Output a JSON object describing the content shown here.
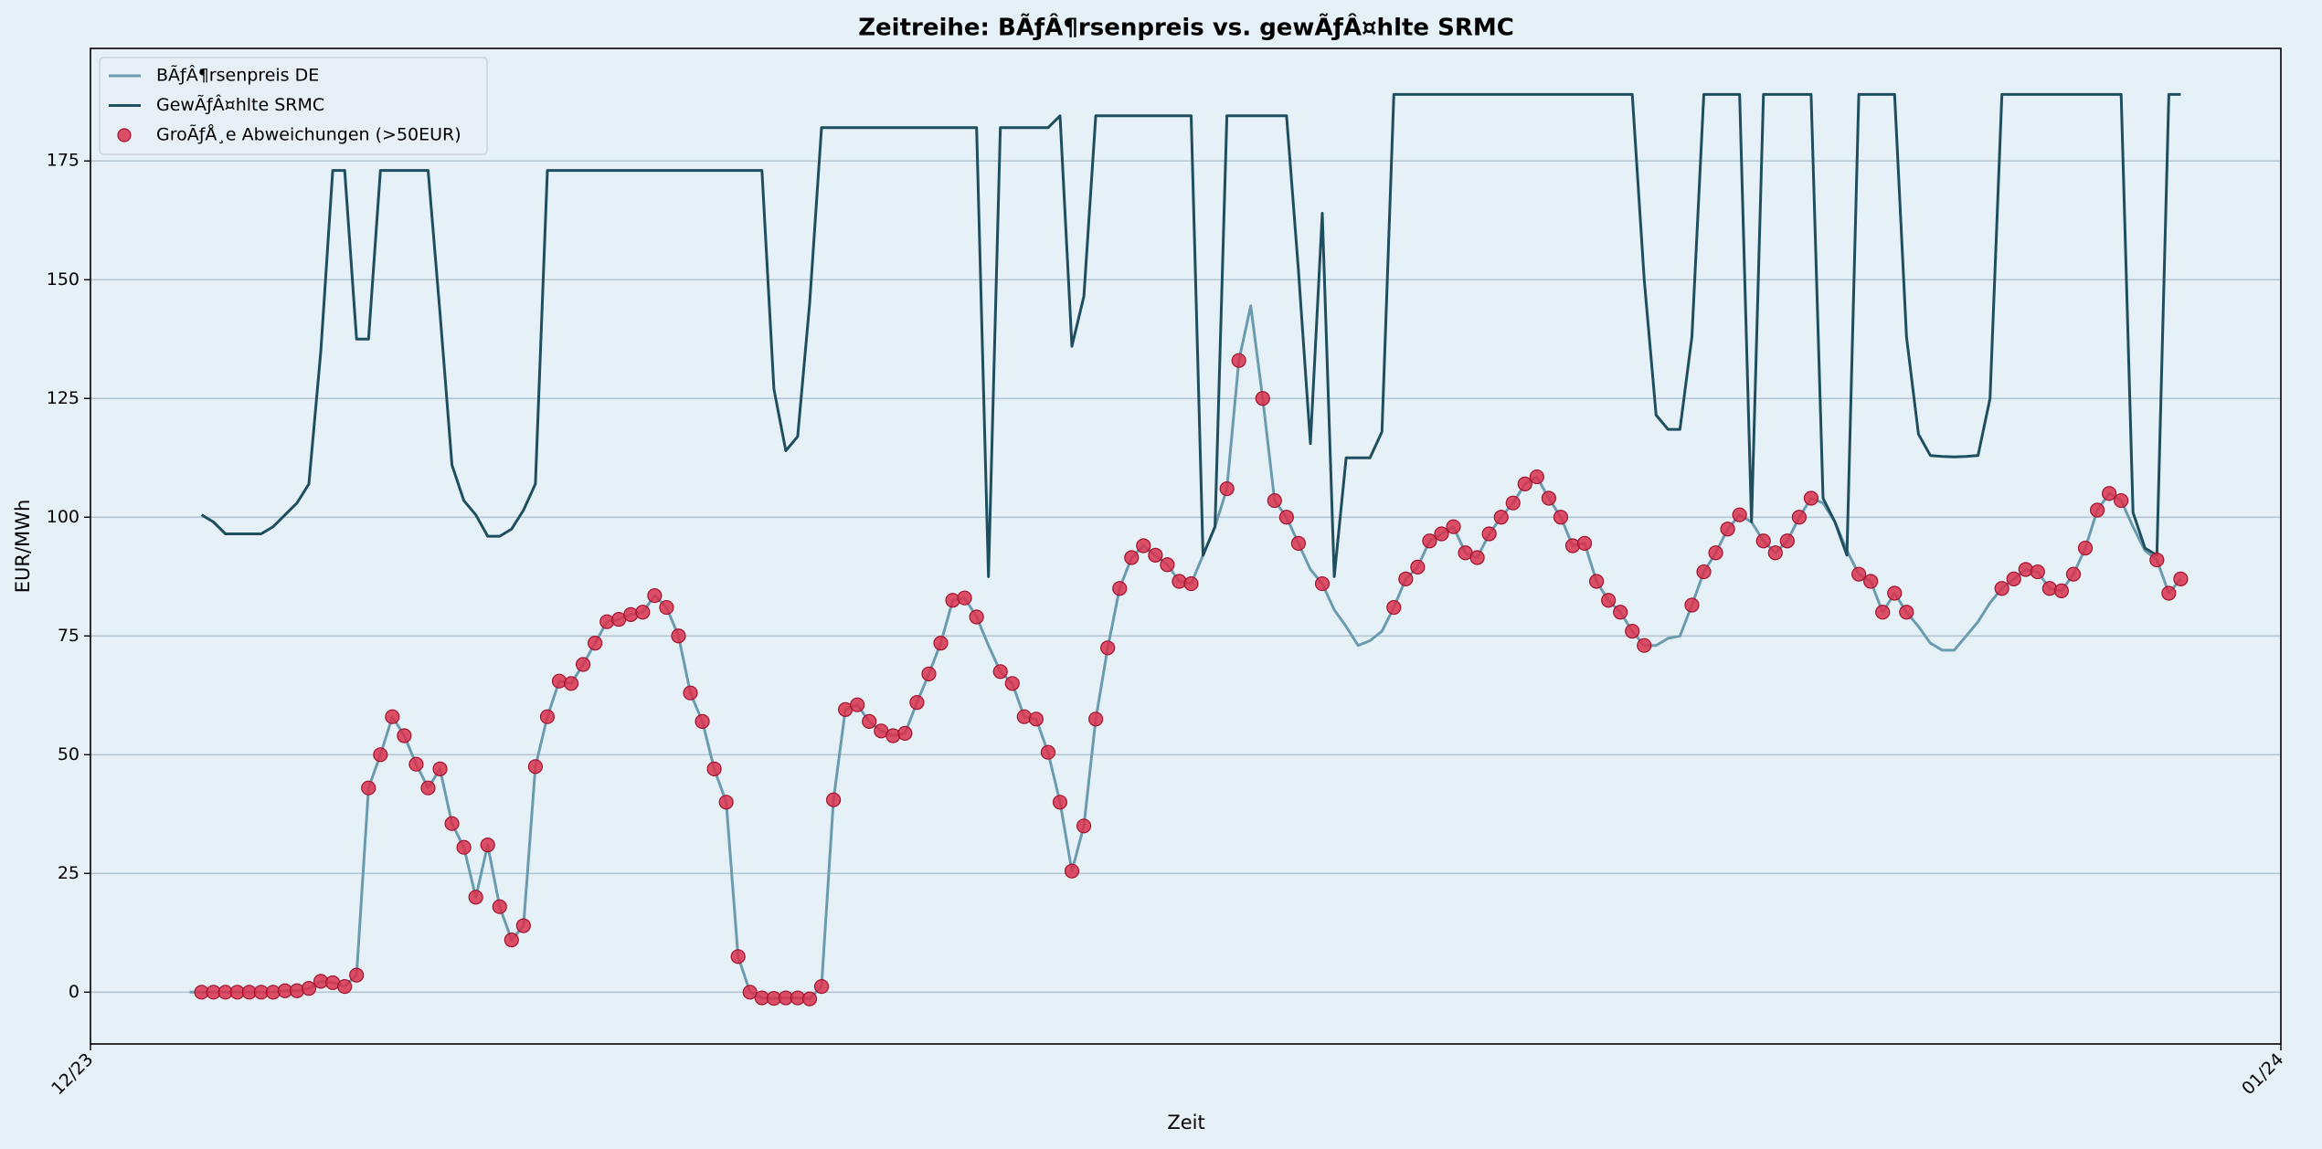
{
  "chart_data": {
    "type": "line",
    "title": "Zeitreihe: BÃƒÂ¶rsenpreis vs. gewÃƒÂ¤hlte SRMC",
    "x_label": "Zeit",
    "y_label": "EUR/MWh",
    "xlim": [
      -8.32,
      175.4
    ],
    "xticks": [
      {
        "value": -8.32,
        "label": "12/23"
      },
      {
        "value": 175.4,
        "label": "01/24"
      }
    ],
    "ylim": [
      -10.9,
      198.7
    ],
    "yticks": [
      0,
      25,
      50,
      75,
      100,
      125,
      150,
      175
    ],
    "grid": "y",
    "legend": "upper left",
    "x": [
      0,
      1,
      2,
      3,
      4,
      5,
      6,
      7,
      8,
      9,
      10,
      11,
      12,
      13,
      14,
      15,
      16,
      17,
      18,
      19,
      20,
      21,
      22,
      23,
      24,
      25,
      26,
      27,
      28,
      29,
      30,
      31,
      32,
      33,
      34,
      35,
      36,
      37,
      38,
      39,
      40,
      41,
      42,
      43,
      44,
      45,
      46,
      47,
      48,
      49,
      50,
      51,
      52,
      53,
      54,
      55,
      56,
      57,
      58,
      59,
      60,
      61,
      62,
      63,
      64,
      65,
      66,
      67,
      68,
      69,
      70,
      71,
      72,
      73,
      74,
      75,
      76,
      77,
      78,
      79,
      80,
      81,
      82,
      83,
      84,
      85,
      86,
      87,
      88,
      89,
      90,
      91,
      92,
      93,
      94,
      95,
      96,
      97,
      98,
      99,
      100,
      101,
      102,
      103,
      104,
      105,
      106,
      107,
      108,
      109,
      110,
      111,
      112,
      113,
      114,
      115,
      116,
      117,
      118,
      119,
      120,
      121,
      122,
      123,
      124,
      125,
      126,
      127,
      128,
      129,
      130,
      131,
      132,
      133,
      134,
      135,
      136,
      137,
      138,
      139,
      140,
      141,
      142,
      143,
      144,
      145,
      146,
      147,
      148,
      149,
      150,
      151,
      152,
      153,
      154,
      155,
      156,
      157,
      158,
      159,
      160,
      161,
      162,
      163,
      164,
      165,
      166,
      167
    ],
    "series": [
      {
        "name": "BÃƒÂ¶rsenpreis DE",
        "kind": "line",
        "color": "#6b9bae",
        "values": [
          0,
          0,
          0,
          0,
          0,
          0,
          0,
          0,
          0.3,
          0.3,
          0.8,
          2.3,
          2.0,
          1.2,
          3.6,
          43,
          50,
          58,
          54,
          48,
          43,
          47,
          35.5,
          30.5,
          20,
          31,
          18,
          11,
          14,
          47.5,
          58,
          65.5,
          65,
          69,
          73.5,
          78,
          78.5,
          79.5,
          80,
          83.5,
          81,
          75,
          63,
          57,
          47,
          40,
          7.5,
          0,
          -1.2,
          -1.3,
          -1.2,
          -1.2,
          -1.4,
          1.2,
          40.5,
          59.5,
          60.5,
          57,
          55,
          54,
          54.5,
          61,
          67,
          73.5,
          82.5,
          83,
          79,
          73,
          67.5,
          65,
          58,
          57.5,
          50.5,
          40,
          25.5,
          35,
          57.5,
          72.5,
          85,
          91.5,
          94,
          92,
          90,
          86.5,
          86,
          92,
          98,
          106,
          133,
          144.5,
          125,
          103.5,
          100,
          94.5,
          89,
          86,
          80.5,
          77,
          73,
          74,
          76,
          81,
          87,
          89.5,
          95,
          96.5,
          98,
          92.5,
          91.5,
          96.5,
          100,
          103,
          107,
          108.5,
          104,
          100,
          94,
          94.5,
          86.5,
          82.5,
          80,
          76,
          73,
          73,
          74.5,
          75,
          81.5,
          88.5,
          92.5,
          97.5,
          100.5,
          99,
          95,
          92.5,
          95,
          100,
          104,
          103,
          99,
          93,
          88,
          86.5,
          80,
          84,
          80,
          77,
          73.5,
          72,
          72,
          75,
          78,
          82,
          85,
          87,
          89,
          88.5,
          85,
          84.5,
          88,
          93.5,
          101.5,
          105,
          103.5,
          98,
          93,
          91,
          84,
          87
        ]
      },
      {
        "name": "GewÃƒÂ¤hlte SRMC",
        "kind": "line",
        "color": "#1f4e5f",
        "values": [
          null,
          100.5,
          99,
          96.5,
          96.5,
          96.5,
          96.5,
          98,
          100.5,
          103,
          107,
          135,
          173,
          173,
          137.5,
          137.5,
          173,
          173,
          173,
          173,
          173,
          143,
          111,
          103.5,
          100.5,
          96,
          96,
          97.5,
          101.5,
          107,
          173,
          173,
          173,
          173,
          173,
          173,
          173,
          173,
          173,
          173,
          173,
          173,
          173,
          173,
          173,
          173,
          173,
          173,
          173,
          127,
          114,
          117,
          145,
          182,
          182,
          182,
          182,
          182,
          182,
          182,
          182,
          182,
          182,
          182,
          182,
          182,
          182,
          87.5,
          182,
          182,
          182,
          182,
          182,
          184.5,
          136,
          146.5,
          184.5,
          184.5,
          184.5,
          184.5,
          184.5,
          184.5,
          184.5,
          184.5,
          184.5,
          92,
          98,
          184.5,
          184.5,
          184.5,
          184.5,
          184.5,
          184.5,
          152,
          115.5,
          164,
          87.5,
          112.5,
          112.5,
          112.5,
          118,
          189,
          189,
          189,
          189,
          189,
          189,
          189,
          189,
          189,
          189,
          189,
          189,
          189,
          189,
          189,
          189,
          189,
          189,
          189,
          189,
          189,
          150,
          121.5,
          118.5,
          118.5,
          138,
          189,
          189,
          189,
          189,
          99,
          189,
          189,
          189,
          189,
          189,
          104,
          99,
          92,
          189,
          189,
          189,
          189,
          138,
          117.5,
          113,
          112.8,
          112.7,
          112.8,
          113,
          125,
          189,
          189,
          189,
          189,
          189,
          189,
          189,
          189,
          189,
          189,
          189,
          101,
          93.5,
          92,
          189,
          189
        ]
      },
      {
        "name": "GroÃƒÅ¸e Abweichungen (>50EUR)",
        "kind": "scatter",
        "color": "#d9304c",
        "values": [
          null,
          0,
          0,
          0,
          0,
          0,
          0,
          0,
          0.3,
          0.3,
          0.8,
          2.3,
          2.0,
          1.2,
          3.6,
          43,
          50,
          58,
          54,
          48,
          43,
          47,
          35.5,
          30.5,
          20,
          31,
          18,
          11,
          14,
          47.5,
          58,
          65.5,
          65,
          69,
          73.5,
          78,
          78.5,
          79.5,
          80,
          83.5,
          81,
          75,
          63,
          57,
          47,
          40,
          7.5,
          0,
          -1.2,
          -1.3,
          -1.2,
          -1.2,
          -1.4,
          1.2,
          40.5,
          59.5,
          60.5,
          57,
          55,
          54,
          54.5,
          61,
          67,
          73.5,
          82.5,
          83,
          79,
          null,
          67.5,
          65,
          58,
          57.5,
          50.5,
          40,
          25.5,
          35,
          57.5,
          72.5,
          85,
          91.5,
          94,
          92,
          90,
          86.5,
          86,
          null,
          null,
          106,
          133,
          null,
          125,
          103.5,
          100,
          94.5,
          null,
          86,
          null,
          null,
          null,
          null,
          null,
          81,
          87,
          89.5,
          95,
          96.5,
          98,
          92.5,
          91.5,
          96.5,
          100,
          103,
          107,
          108.5,
          104,
          100,
          94,
          94.5,
          86.5,
          82.5,
          80,
          76,
          73,
          null,
          null,
          null,
          81.5,
          88.5,
          92.5,
          97.5,
          100.5,
          null,
          95,
          92.5,
          95,
          100,
          104,
          null,
          null,
          null,
          88,
          86.5,
          80,
          84,
          80,
          null,
          null,
          null,
          null,
          null,
          null,
          null,
          85,
          87,
          89,
          88.5,
          85,
          84.5,
          88,
          93.5,
          101.5,
          105,
          103.5,
          null,
          null,
          91,
          84,
          87
        ]
      }
    ]
  }
}
